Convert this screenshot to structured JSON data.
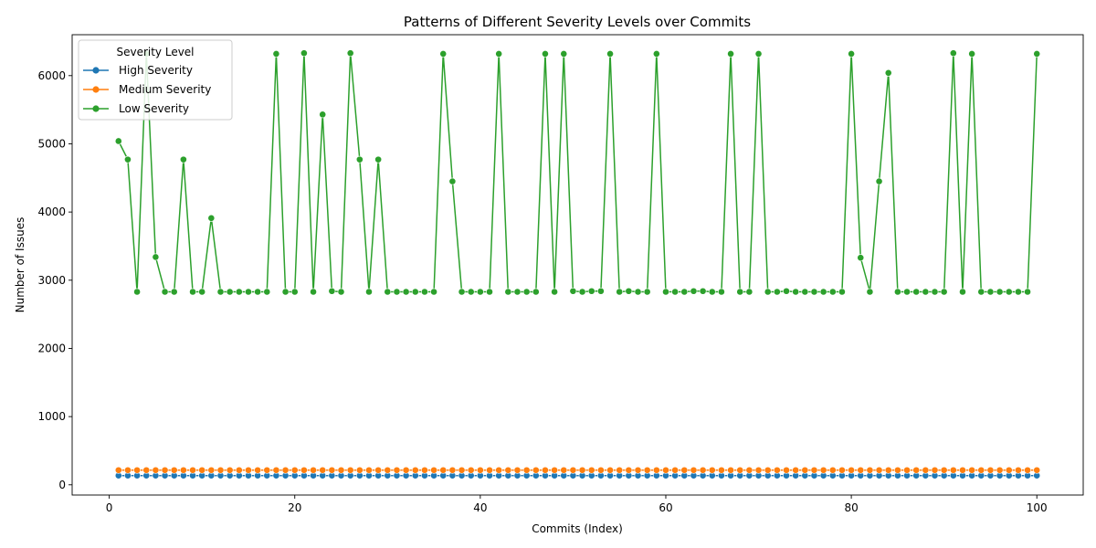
{
  "chart_data": {
    "type": "line",
    "title": "Patterns of Different Severity Levels over Commits",
    "xlabel": "Commits (Index)",
    "ylabel": "Number of Issues",
    "xlim": [
      -4,
      105
    ],
    "ylim": [
      -150,
      6600
    ],
    "xticks": [
      0,
      20,
      40,
      60,
      80,
      100
    ],
    "yticks": [
      0,
      1000,
      2000,
      3000,
      4000,
      5000,
      6000
    ],
    "grid": false,
    "legend": {
      "title": "Severity Level",
      "placement": "top-left"
    },
    "x": [
      1,
      2,
      3,
      4,
      5,
      6,
      7,
      8,
      9,
      10,
      11,
      12,
      13,
      14,
      15,
      16,
      17,
      18,
      19,
      20,
      21,
      22,
      23,
      24,
      25,
      26,
      27,
      28,
      29,
      30,
      31,
      32,
      33,
      34,
      35,
      36,
      37,
      38,
      39,
      40,
      41,
      42,
      43,
      44,
      45,
      46,
      47,
      48,
      49,
      50,
      51,
      52,
      53,
      54,
      55,
      56,
      57,
      58,
      59,
      60,
      61,
      62,
      63,
      64,
      65,
      66,
      67,
      68,
      69,
      70,
      71,
      72,
      73,
      74,
      75,
      76,
      77,
      78,
      79,
      80,
      81,
      82,
      83,
      84,
      85,
      86,
      87,
      88,
      89,
      90,
      91,
      92,
      93,
      94,
      95,
      96,
      97,
      98,
      99,
      100
    ],
    "series": [
      {
        "name": "High Severity",
        "color": "#1f77b4",
        "values": [
          135,
          135,
          135,
          135,
          135,
          135,
          135,
          135,
          135,
          135,
          135,
          135,
          135,
          135,
          135,
          135,
          135,
          135,
          135,
          135,
          135,
          135,
          135,
          135,
          135,
          135,
          135,
          135,
          135,
          135,
          135,
          135,
          135,
          135,
          135,
          135,
          135,
          135,
          135,
          135,
          135,
          135,
          135,
          135,
          135,
          135,
          135,
          135,
          135,
          135,
          135,
          135,
          135,
          135,
          135,
          135,
          135,
          135,
          135,
          135,
          135,
          135,
          135,
          135,
          135,
          135,
          135,
          135,
          135,
          135,
          135,
          135,
          135,
          135,
          135,
          135,
          135,
          135,
          135,
          135,
          135,
          135,
          135,
          135,
          135,
          135,
          135,
          135,
          135,
          135,
          135,
          135,
          135,
          135,
          135,
          135,
          135,
          135,
          135,
          135
        ]
      },
      {
        "name": "Medium Severity",
        "color": "#ff7f0e",
        "values": [
          215,
          215,
          215,
          215,
          215,
          215,
          215,
          215,
          215,
          215,
          215,
          215,
          215,
          215,
          215,
          215,
          215,
          215,
          215,
          215,
          215,
          215,
          215,
          215,
          215,
          215,
          215,
          215,
          215,
          215,
          215,
          215,
          215,
          215,
          215,
          215,
          215,
          215,
          215,
          215,
          215,
          215,
          215,
          215,
          215,
          215,
          215,
          215,
          215,
          215,
          215,
          215,
          215,
          215,
          215,
          215,
          215,
          215,
          215,
          215,
          215,
          215,
          215,
          215,
          215,
          215,
          215,
          215,
          215,
          215,
          215,
          215,
          215,
          215,
          215,
          215,
          215,
          215,
          215,
          215,
          215,
          215,
          215,
          215,
          215,
          215,
          215,
          215,
          215,
          215,
          215,
          215,
          215,
          215,
          215,
          215,
          215,
          215,
          215,
          215
        ]
      },
      {
        "name": "Low Severity",
        "color": "#2ca02c",
        "values": [
          5040,
          4770,
          2830,
          6320,
          3340,
          2830,
          2830,
          4770,
          2830,
          2830,
          3910,
          2830,
          2830,
          2830,
          2830,
          2830,
          2830,
          6320,
          2830,
          2830,
          6330,
          2830,
          5430,
          2840,
          2830,
          6330,
          4770,
          2830,
          4770,
          2830,
          2830,
          2830,
          2830,
          2830,
          2830,
          6320,
          4450,
          2830,
          2830,
          2830,
          2830,
          6320,
          2830,
          2830,
          2830,
          2830,
          6320,
          2830,
          6320,
          2840,
          2830,
          2840,
          2840,
          6320,
          2830,
          2840,
          2830,
          2830,
          6320,
          2830,
          2830,
          2830,
          2840,
          2840,
          2830,
          2830,
          6320,
          2830,
          2830,
          6320,
          2830,
          2830,
          2840,
          2830,
          2830,
          2830,
          2830,
          2830,
          2830,
          6320,
          3330,
          2830,
          4450,
          6040,
          2830,
          2830,
          2830,
          2830,
          2830,
          2830,
          6330,
          2830,
          6320,
          2830,
          2830,
          2830,
          2830,
          2830,
          2830,
          6320
        ]
      }
    ]
  }
}
